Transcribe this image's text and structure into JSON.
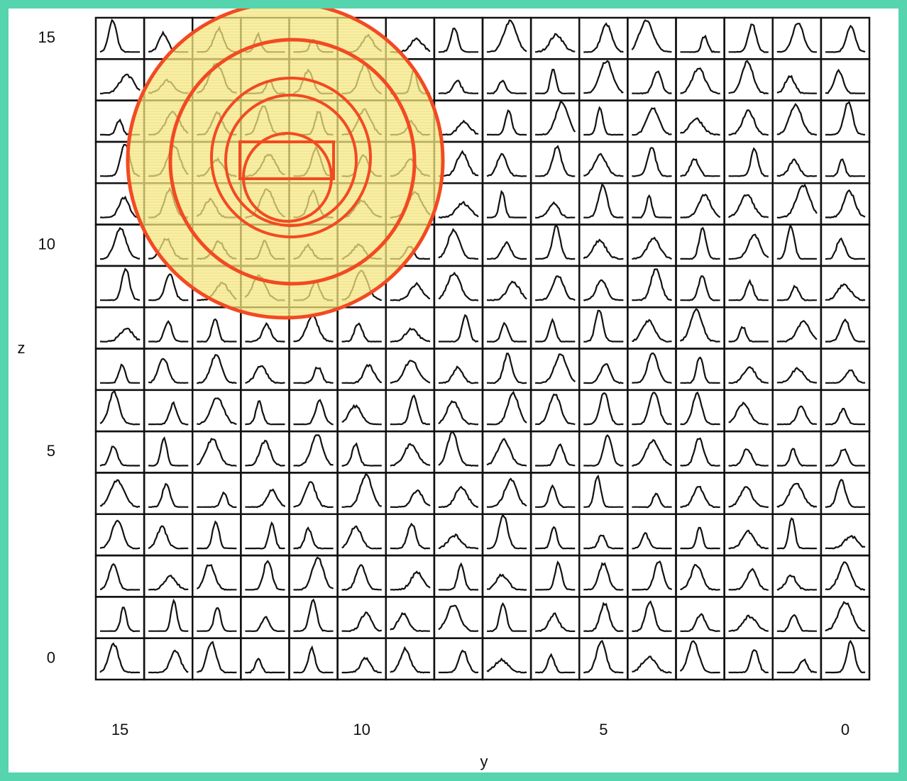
{
  "chart_data": {
    "type": "small-multiples",
    "xlabel": "y",
    "ylabel": "z",
    "xlim": [
      15.5,
      -0.5
    ],
    "xticks": [
      15,
      10,
      5,
      0
    ],
    "ylim": [
      -0.5,
      15.5
    ],
    "yticks": [
      0,
      5,
      10,
      15
    ]
  }
}
